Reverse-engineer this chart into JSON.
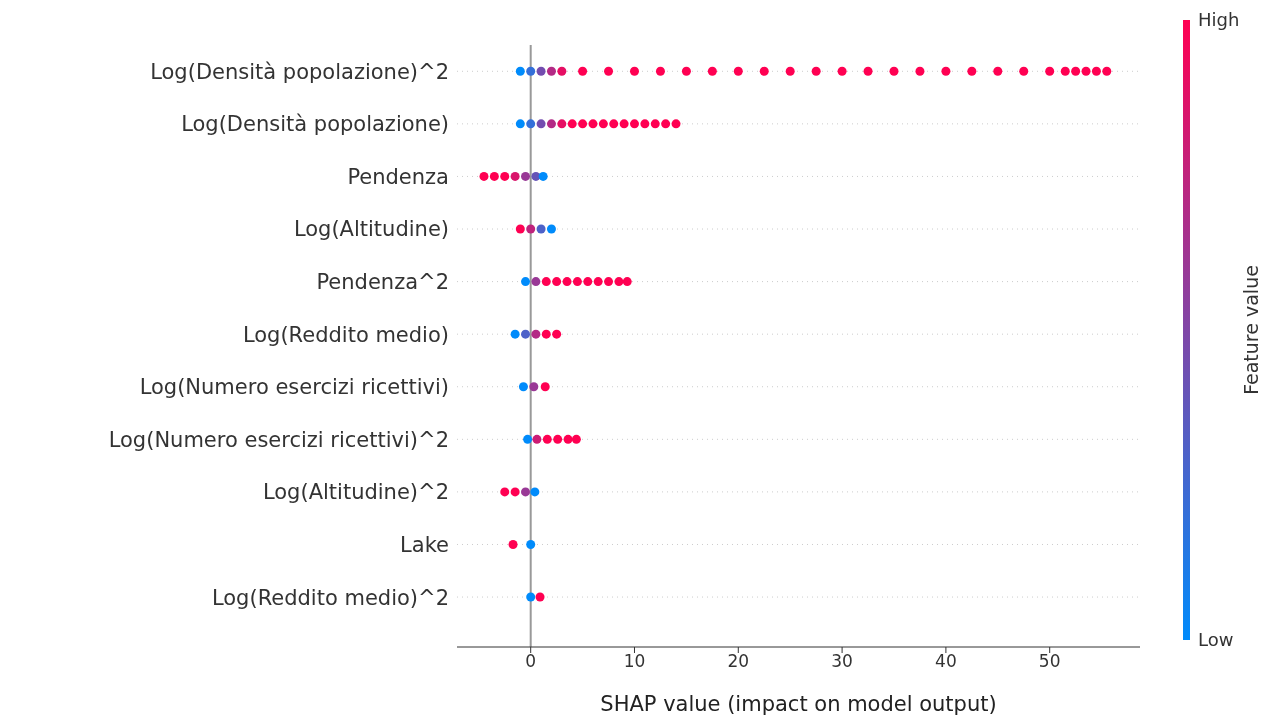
{
  "chart_data": {
    "type": "scatter",
    "orientation": "horizontal",
    "xlabel": "SHAP value (impact on model output)",
    "clabel": "Feature value",
    "clim": [
      0,
      1
    ],
    "cticks": [
      {
        "value": 0,
        "label": "Low"
      },
      {
        "value": 1,
        "label": "High"
      }
    ],
    "xlim": [
      -7.1,
      58.7
    ],
    "xticks": [
      0,
      10,
      20,
      30,
      40,
      50
    ],
    "grid": "y",
    "marker": "circle",
    "legend": false,
    "ref_lines": [
      {
        "axis": "x",
        "value": 0,
        "color": "#999999"
      }
    ],
    "categories": [
      "Log(Densità popolazione)^2",
      "Log(Densità popolazione)",
      "Pendenza",
      "Log(Altitudine)",
      "Pendenza^2",
      "Log(Reddito medio)",
      "Log(Numero esercizi ricettivi)",
      "Log(Numero esercizi ricettivi)^2",
      "Log(Altitudine)^2",
      "Lake",
      "Log(Reddito medio)^2"
    ],
    "series": [
      {
        "values": [
          -1,
          -1,
          -4.5,
          -1,
          -0.5,
          -1.5,
          -0.7,
          -0.3,
          -2.5,
          -1.7,
          0
        ],
        "colors": [
          "#008bfb",
          "#008bfb",
          "#ff0052",
          "#ff0052",
          "#008bfb",
          "#008bfb",
          "#008bfb",
          "#008bfb",
          "#ff0052",
          "#ff0052",
          "#008bfb"
        ]
      },
      {
        "values": [
          0,
          0,
          -3.5,
          0,
          0.5,
          -0.5,
          0.3,
          0.6,
          -1.5,
          0,
          0.9
        ],
        "colors": [
          "#336fd9",
          "#336fd9",
          "#ff0052",
          "#bf237c",
          "#993896",
          "#4d61c8",
          "#993896",
          "#cc1c74",
          "#ff0052",
          "#008bfb",
          "#ff0052"
        ]
      },
      {
        "values": [
          1,
          1,
          -2.5,
          1,
          1.5,
          0.5,
          1.4,
          1.6,
          -0.5,
          null,
          null
        ],
        "colors": [
          "#734caf",
          "#734caf",
          "#ff0052",
          "#4d61c8",
          "#ff0052",
          "#b32a85",
          "#ff0052",
          "#ff0052",
          "#993896",
          null,
          null
        ]
      },
      {
        "values": [
          2,
          2,
          -1.5,
          2,
          2.5,
          1.5,
          null,
          2.6,
          0.4,
          null,
          null
        ],
        "colors": [
          "#b32a85",
          "#b32a85",
          "#d9156b",
          "#008bfb",
          "#ff0052",
          "#ff0052",
          null,
          "#ff0052",
          "#008bfb",
          null,
          null
        ]
      },
      {
        "values": [
          3,
          3,
          -0.5,
          null,
          3.5,
          2.5,
          null,
          3.6,
          null,
          null,
          null
        ],
        "colors": [
          "#e60e63",
          "#e60e63",
          "#993896",
          null,
          "#ff0052",
          "#ff0052",
          null,
          "#ff0052",
          null,
          null,
          null
        ]
      },
      {
        "values": [
          5,
          4,
          0.5,
          null,
          4.5,
          null,
          null,
          4.4,
          null,
          null,
          null
        ],
        "colors": [
          "#ff0052",
          "#ff0052",
          "#6653b7",
          null,
          "#ff0052",
          null,
          null,
          "#ff0052",
          null,
          null,
          null
        ]
      },
      {
        "values": [
          7.5,
          5,
          1.2,
          null,
          5.5,
          null,
          null,
          null,
          null,
          null,
          null
        ],
        "colors": [
          "#ff0052",
          "#ff0052",
          "#008bfb",
          null,
          "#ff0052",
          null,
          null,
          null,
          null,
          null,
          null
        ]
      },
      {
        "values": [
          10,
          6,
          null,
          null,
          6.5,
          null,
          null,
          null,
          null,
          null,
          null
        ],
        "color": "#ff0052"
      },
      {
        "values": [
          12.5,
          7,
          null,
          null,
          7.5,
          null,
          null,
          null,
          null,
          null,
          null
        ],
        "color": "#ff0052"
      },
      {
        "values": [
          15,
          8,
          null,
          null,
          8.5,
          null,
          null,
          null,
          null,
          null,
          null
        ],
        "color": "#ff0052"
      },
      {
        "values": [
          17.5,
          9,
          null,
          null,
          9.3,
          null,
          null,
          null,
          null,
          null,
          null
        ],
        "color": "#ff0052"
      },
      {
        "values": [
          20,
          10,
          null,
          null,
          null,
          null,
          null,
          null,
          null,
          null,
          null
        ],
        "color": "#ff0052"
      },
      {
        "values": [
          22.5,
          11,
          null,
          null,
          null,
          null,
          null,
          null,
          null,
          null,
          null
        ],
        "color": "#ff0052"
      },
      {
        "values": [
          25,
          12,
          null,
          null,
          null,
          null,
          null,
          null,
          null,
          null,
          null
        ],
        "color": "#ff0052"
      },
      {
        "values": [
          27.5,
          13,
          null,
          null,
          null,
          null,
          null,
          null,
          null,
          null,
          null
        ],
        "color": "#ff0052"
      },
      {
        "values": [
          30,
          14,
          null,
          null,
          null,
          null,
          null,
          null,
          null,
          null,
          null
        ],
        "color": "#ff0052"
      },
      {
        "values": [
          32.5,
          null,
          null,
          null,
          null,
          null,
          null,
          null,
          null,
          null,
          null
        ],
        "color": "#ff0052"
      },
      {
        "values": [
          35,
          null,
          null,
          null,
          null,
          null,
          null,
          null,
          null,
          null,
          null
        ],
        "color": "#ff0052"
      },
      {
        "values": [
          37.5,
          null,
          null,
          null,
          null,
          null,
          null,
          null,
          null,
          null,
          null
        ],
        "color": "#ff0052"
      },
      {
        "values": [
          40,
          null,
          null,
          null,
          null,
          null,
          null,
          null,
          null,
          null,
          null
        ],
        "color": "#ff0052"
      },
      {
        "values": [
          42.5,
          null,
          null,
          null,
          null,
          null,
          null,
          null,
          null,
          null,
          null
        ],
        "color": "#ff0052"
      },
      {
        "values": [
          45,
          null,
          null,
          null,
          null,
          null,
          null,
          null,
          null,
          null,
          null
        ],
        "color": "#ff0052"
      },
      {
        "values": [
          47.5,
          null,
          null,
          null,
          null,
          null,
          null,
          null,
          null,
          null,
          null
        ],
        "color": "#ff0052"
      },
      {
        "values": [
          50,
          null,
          null,
          null,
          null,
          null,
          null,
          null,
          null,
          null,
          null
        ],
        "color": "#ff0052"
      },
      {
        "values": [
          51.5,
          null,
          null,
          null,
          null,
          null,
          null,
          null,
          null,
          null,
          null
        ],
        "color": "#ff0052"
      },
      {
        "values": [
          52.5,
          null,
          null,
          null,
          null,
          null,
          null,
          null,
          null,
          null,
          null
        ],
        "color": "#ff0052"
      },
      {
        "values": [
          53.5,
          null,
          null,
          null,
          null,
          null,
          null,
          null,
          null,
          null,
          null
        ],
        "color": "#ff0052"
      },
      {
        "values": [
          54.5,
          null,
          null,
          null,
          null,
          null,
          null,
          null,
          null,
          null,
          null
        ],
        "color": "#ff0052"
      },
      {
        "values": [
          55.5,
          null,
          null,
          null,
          null,
          null,
          null,
          null,
          null,
          null,
          null
        ],
        "color": "#ff0052"
      }
    ]
  }
}
